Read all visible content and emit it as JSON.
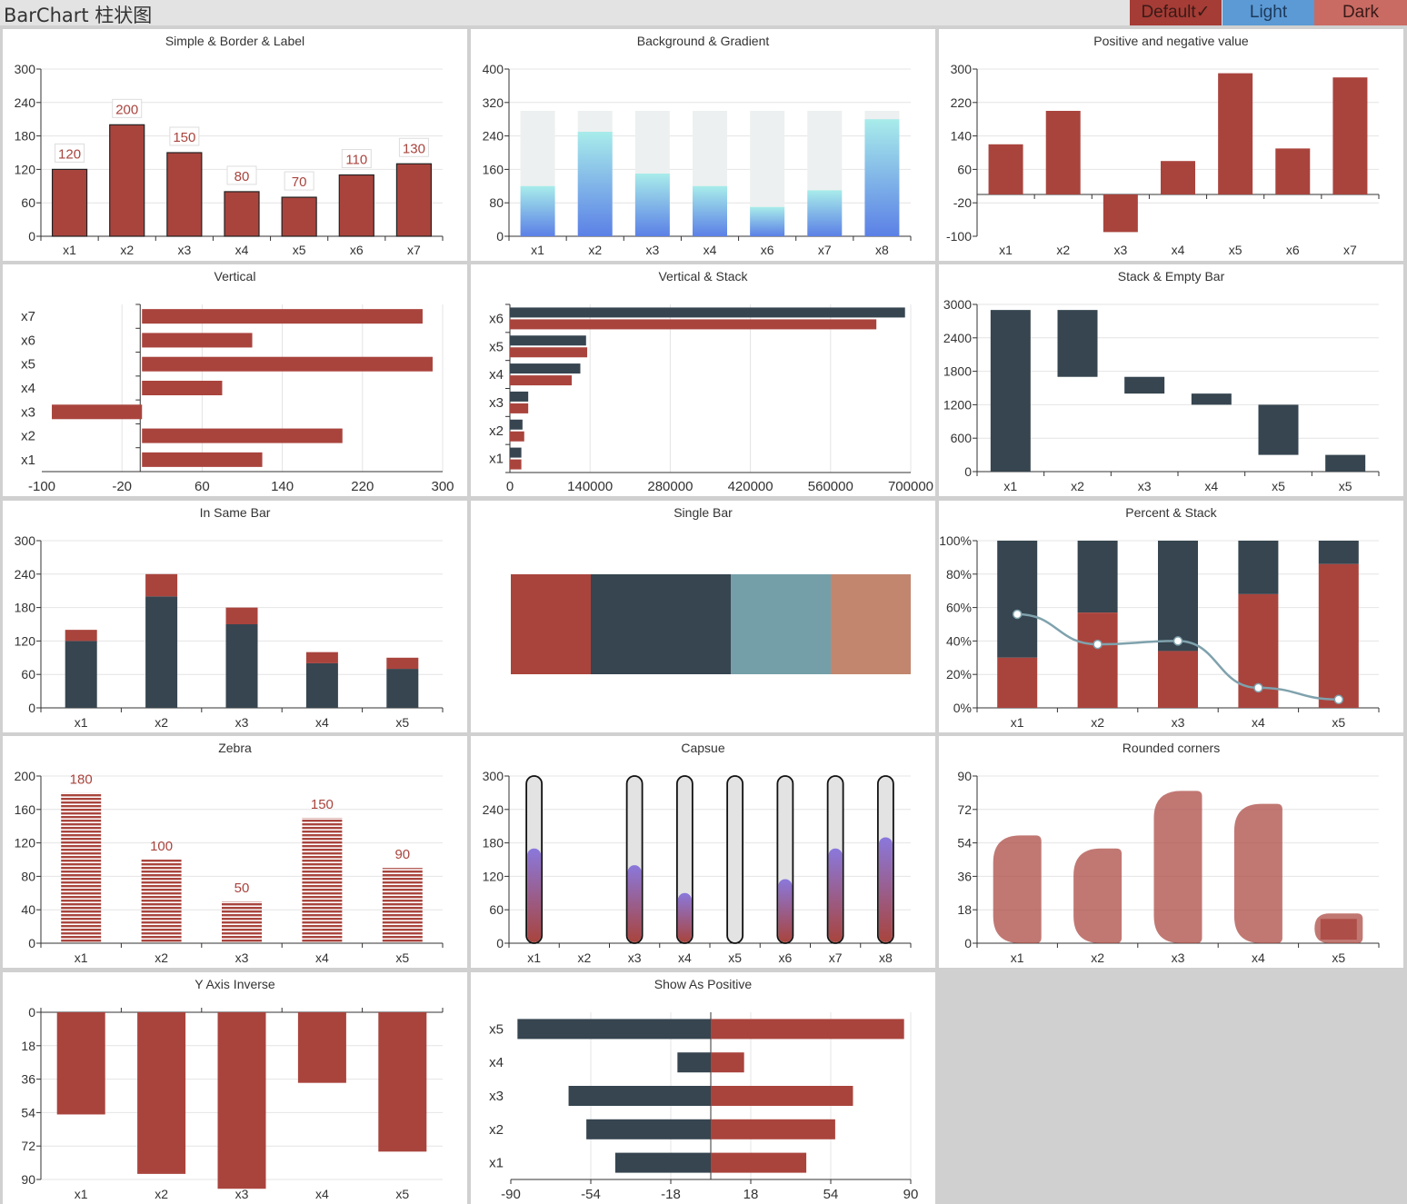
{
  "header": {
    "title": "BarChart 柱状图",
    "themes": [
      "Default✓",
      "Light",
      "Dark"
    ]
  },
  "colors": {
    "red": "#a9443d",
    "dark": "#364550",
    "teal": "#759fa8",
    "salmon": "#c2866f",
    "grid": "#e4e4e4",
    "axis": "#333333"
  },
  "chart_data": [
    {
      "title": "Simple & Border & Label",
      "type": "bar",
      "categories": [
        "x1",
        "x2",
        "x3",
        "x4",
        "x5",
        "x6",
        "x7"
      ],
      "values": [
        120,
        200,
        150,
        80,
        70,
        110,
        130
      ],
      "labels": [
        "120",
        "200",
        "150",
        "80",
        "70",
        "110",
        "130"
      ],
      "yticks": [
        "0",
        "60",
        "120",
        "180",
        "240",
        "300"
      ],
      "ylim": [
        0,
        300
      ]
    },
    {
      "title": "Background & Gradient",
      "type": "bar",
      "categories": [
        "x1",
        "x2",
        "x3",
        "x4",
        "x6",
        "x7",
        "x8"
      ],
      "values": [
        120,
        250,
        150,
        120,
        70,
        110,
        280
      ],
      "background": 300,
      "yticks": [
        "0",
        "80",
        "160",
        "240",
        "320",
        "400"
      ],
      "ylim": [
        0,
        400
      ]
    },
    {
      "title": "Positive and negative value",
      "type": "bar",
      "categories": [
        "x1",
        "x2",
        "x3",
        "x4",
        "x5",
        "x6",
        "x7"
      ],
      "values": [
        120,
        200,
        -90,
        80,
        290,
        110,
        280
      ],
      "yticks": [
        "-100",
        "-20",
        "60",
        "140",
        "220",
        "300"
      ],
      "ylim": [
        -100,
        300
      ]
    },
    {
      "title": "Vertical",
      "type": "bar",
      "orientation": "horizontal",
      "categories": [
        "x1",
        "x2",
        "x3",
        "x4",
        "x5",
        "x6",
        "x7"
      ],
      "values": [
        120,
        200,
        -90,
        80,
        290,
        110,
        280
      ],
      "xticks": [
        "-100",
        "-20",
        "60",
        "140",
        "220",
        "300"
      ],
      "xlim": [
        -100,
        300
      ]
    },
    {
      "title": "Vertical & Stack",
      "type": "bar",
      "orientation": "horizontal",
      "categories": [
        "x1",
        "x2",
        "x3",
        "x4",
        "x5",
        "x6"
      ],
      "series": [
        {
          "values": [
            20000,
            25000,
            32000,
            108000,
            135000,
            640000
          ]
        },
        {
          "values": [
            20000,
            22000,
            32000,
            123000,
            133000,
            690000
          ]
        }
      ],
      "xticks": [
        "0",
        "140000",
        "280000",
        "420000",
        "560000",
        "700000"
      ],
      "xlim": [
        0,
        700000
      ]
    },
    {
      "title": "Stack & Empty Bar",
      "type": "bar",
      "subtype": "waterfall",
      "categories": [
        "x1",
        "x2",
        "x3",
        "x4",
        "x5",
        "x5"
      ],
      "ranges": [
        [
          0,
          2900
        ],
        [
          1700,
          2900
        ],
        [
          1400,
          1700
        ],
        [
          1200,
          1400
        ],
        [
          300,
          1200
        ],
        [
          0,
          300
        ]
      ],
      "yticks": [
        "0",
        "600",
        "1200",
        "1800",
        "2400",
        "3000"
      ],
      "ylim": [
        0,
        3000
      ]
    },
    {
      "title": "In Same Bar",
      "type": "bar",
      "subtype": "stacked",
      "categories": [
        "x1",
        "x2",
        "x3",
        "x4",
        "x5"
      ],
      "series": [
        {
          "values": [
            120,
            200,
            150,
            80,
            70
          ]
        },
        {
          "values": [
            20,
            40,
            30,
            20,
            20
          ]
        }
      ],
      "yticks": [
        "0",
        "60",
        "120",
        "180",
        "240",
        "300"
      ],
      "ylim": [
        0,
        300
      ]
    },
    {
      "title": "Single Bar",
      "type": "bar",
      "subtype": "single-stacked",
      "values": [
        80,
        140,
        100,
        80
      ]
    },
    {
      "title": "Percent & Stack",
      "type": "bar",
      "subtype": "percent-stacked",
      "categories": [
        "x1",
        "x2",
        "x3",
        "x4",
        "x5"
      ],
      "series": [
        {
          "values": [
            30,
            57,
            34,
            68,
            86
          ]
        },
        {
          "values": [
            70,
            43,
            66,
            32,
            14
          ]
        }
      ],
      "line": [
        56,
        38,
        40,
        12,
        5
      ],
      "yticks": [
        "0%",
        "20%",
        "40%",
        "60%",
        "80%",
        "100%"
      ],
      "ylim": [
        0,
        100
      ]
    },
    {
      "title": "Zebra",
      "type": "bar",
      "subtype": "striped",
      "categories": [
        "x1",
        "x2",
        "x3",
        "x4",
        "x5"
      ],
      "values": [
        180,
        100,
        50,
        150,
        90
      ],
      "labels": [
        "180",
        "100",
        "50",
        "150",
        "90"
      ],
      "yticks": [
        "0",
        "40",
        "80",
        "120",
        "160",
        "200"
      ],
      "ylim": [
        0,
        200
      ]
    },
    {
      "title": "Capsue",
      "type": "bar",
      "subtype": "capsule",
      "categories": [
        "x1",
        "x2",
        "x3",
        "x4",
        "x5",
        "x6",
        "x7",
        "x8"
      ],
      "values": [
        170,
        0,
        140,
        90,
        0,
        115,
        170,
        190
      ],
      "yticks": [
        "0",
        "60",
        "120",
        "180",
        "240",
        "300"
      ],
      "ylim": [
        0,
        300
      ]
    },
    {
      "title": "Rounded corners",
      "type": "bar",
      "subtype": "rounded",
      "categories": [
        "x1",
        "x2",
        "x3",
        "x4",
        "x5"
      ],
      "values": [
        58,
        51,
        82,
        75,
        16
      ],
      "yticks": [
        "0",
        "18",
        "36",
        "54",
        "72",
        "90"
      ],
      "ylim": [
        0,
        90
      ]
    },
    {
      "title": "Y Axis Inverse",
      "type": "bar",
      "subtype": "inverse",
      "categories": [
        "x1",
        "x2",
        "x3",
        "x4",
        "x5"
      ],
      "values": [
        55,
        87,
        95,
        38,
        75
      ],
      "yticks": [
        "0",
        "18",
        "36",
        "54",
        "72",
        "90"
      ],
      "ylim": [
        0,
        90
      ]
    },
    {
      "title": "Show As Positive",
      "type": "bar",
      "orientation": "horizontal",
      "subtype": "diverging",
      "categories": [
        "x1",
        "x2",
        "x3",
        "x4",
        "x5"
      ],
      "series": [
        {
          "values": [
            -43,
            -56,
            -64,
            -15,
            -87
          ]
        },
        {
          "values": [
            43,
            56,
            64,
            15,
            87
          ]
        }
      ],
      "xticks": [
        "-90",
        "-54",
        "-18",
        "18",
        "54",
        "90"
      ],
      "xlim": [
        -90,
        90
      ]
    }
  ]
}
